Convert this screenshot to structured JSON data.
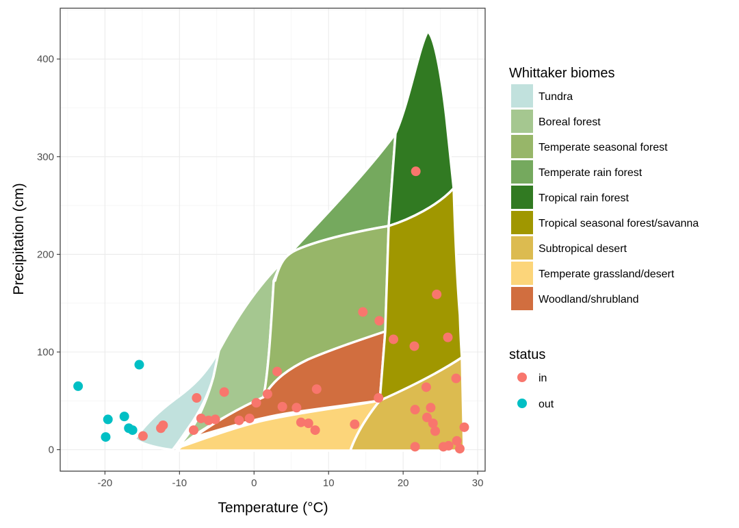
{
  "chart_data": {
    "type": "scatter",
    "xlabel": "Temperature (°C)",
    "ylabel": "Precipitation (cm)",
    "xlim": [
      -26,
      31
    ],
    "ylim": [
      -22,
      452
    ],
    "x_ticks": [
      -20,
      -10,
      0,
      10,
      20,
      30
    ],
    "y_ticks": [
      0,
      100,
      200,
      300,
      400
    ],
    "x_tick_labels": [
      "-20",
      "-10",
      "0",
      "10",
      "20",
      "30"
    ],
    "y_tick_labels": [
      "0",
      "100",
      "200",
      "300",
      "400"
    ],
    "grid": true,
    "legend_position": "right",
    "biome_legend": {
      "title": "Whittaker biomes",
      "items": [
        {
          "name": "Tundra",
          "color": "#C1E1DD"
        },
        {
          "name": "Boreal forest",
          "color": "#A5C790"
        },
        {
          "name": "Temperate seasonal forest",
          "color": "#97B669"
        },
        {
          "name": "Temperate rain forest",
          "color": "#75A95E"
        },
        {
          "name": "Tropical rain forest",
          "color": "#317A22"
        },
        {
          "name": "Tropical seasonal forest/savanna",
          "color": "#A09700"
        },
        {
          "name": "Subtropical desert",
          "color": "#DCBB50"
        },
        {
          "name": "Temperate grassland/desert",
          "color": "#FCD57A"
        },
        {
          "name": "Woodland/shrubland",
          "color": "#D16E3F"
        }
      ]
    },
    "status_legend": {
      "title": "status",
      "items": [
        {
          "name": "in",
          "color": "#F8766D"
        },
        {
          "name": "out",
          "color": "#00BFC4"
        }
      ]
    },
    "series": [
      {
        "name": "in",
        "color": "#F8766D",
        "points": [
          [
            21.7,
            285
          ],
          [
            24.5,
            159
          ],
          [
            14.6,
            141
          ],
          [
            16.8,
            132
          ],
          [
            18.7,
            113
          ],
          [
            26.0,
            115
          ],
          [
            21.5,
            106
          ],
          [
            27.1,
            73
          ],
          [
            23.1,
            64
          ],
          [
            16.7,
            53
          ],
          [
            23.7,
            43
          ],
          [
            21.6,
            41
          ],
          [
            23.2,
            33
          ],
          [
            24.0,
            27
          ],
          [
            24.3,
            19
          ],
          [
            28.2,
            23
          ],
          [
            27.2,
            9
          ],
          [
            26.1,
            4
          ],
          [
            25.4,
            3
          ],
          [
            27.6,
            1
          ],
          [
            21.6,
            3
          ],
          [
            3.1,
            80
          ],
          [
            8.4,
            62
          ],
          [
            1.8,
            57
          ],
          [
            -4.0,
            59
          ],
          [
            -7.7,
            53
          ],
          [
            3.8,
            44
          ],
          [
            0.3,
            48
          ],
          [
            5.7,
            43
          ],
          [
            -0.6,
            32
          ],
          [
            -2.0,
            30
          ],
          [
            -5.2,
            31
          ],
          [
            -6.1,
            30
          ],
          [
            -7.1,
            32
          ],
          [
            6.3,
            28
          ],
          [
            7.3,
            27
          ],
          [
            8.2,
            20
          ],
          [
            13.5,
            26
          ],
          [
            -8.1,
            20
          ],
          [
            -12.2,
            25
          ],
          [
            -12.5,
            22
          ],
          [
            -14.9,
            14
          ]
        ]
      },
      {
        "name": "out",
        "color": "#00BFC4",
        "points": [
          [
            -23.6,
            65
          ],
          [
            -15.4,
            87
          ],
          [
            -19.6,
            31
          ],
          [
            -17.4,
            34
          ],
          [
            -16.8,
            22
          ],
          [
            -16.3,
            20
          ],
          [
            -19.9,
            13
          ]
        ]
      }
    ]
  }
}
